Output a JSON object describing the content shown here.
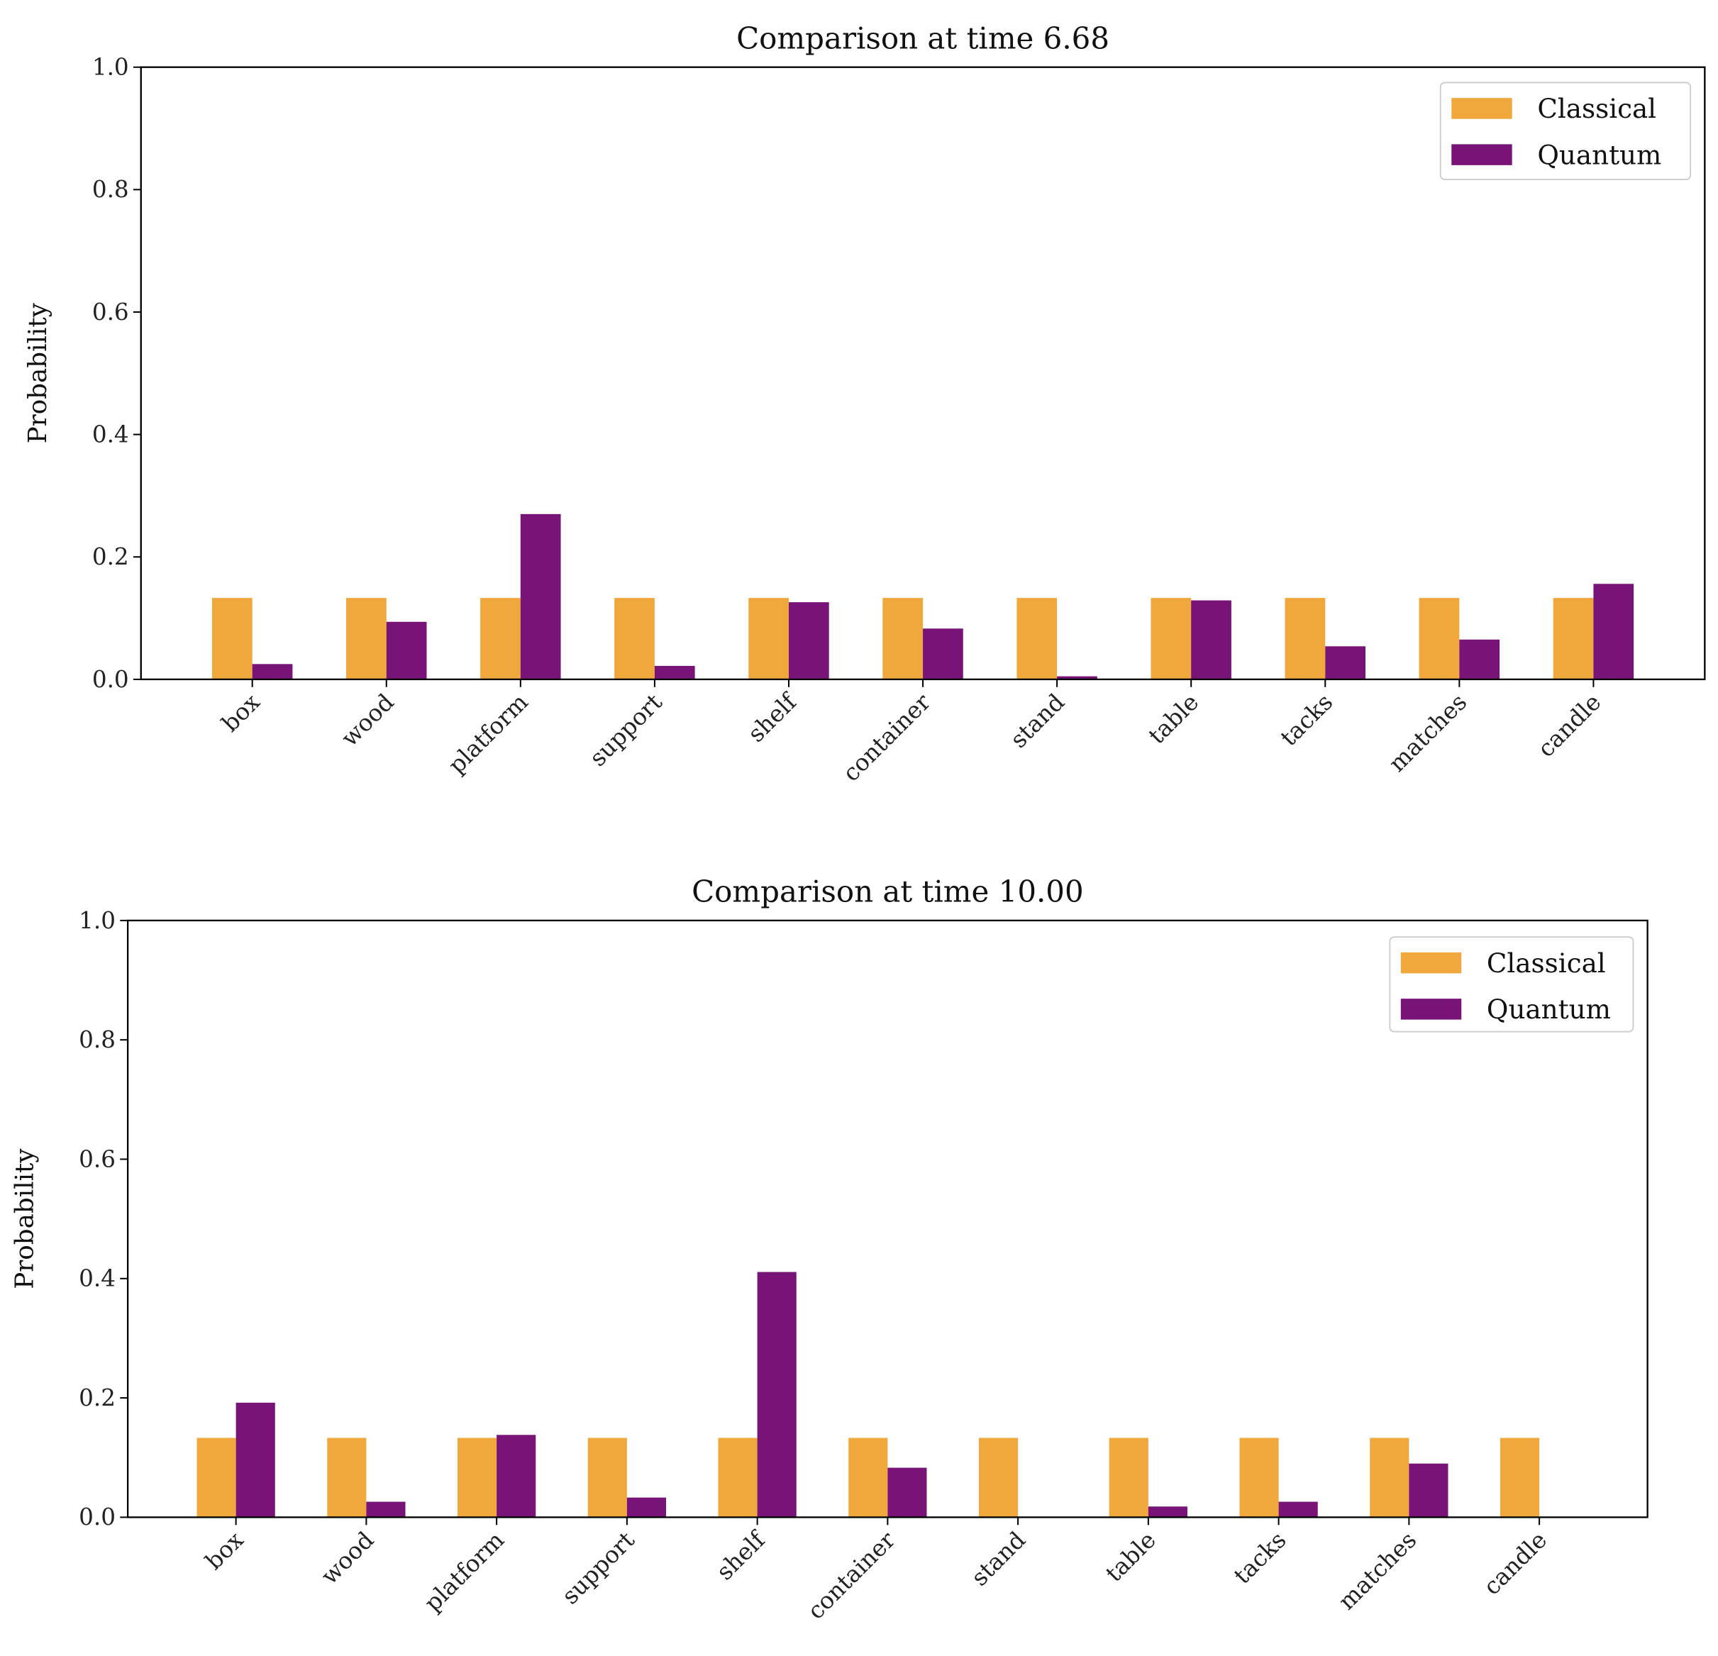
{
  "chart_data": [
    {
      "type": "bar",
      "title": "Comparison at time 6.68",
      "xlabel": "",
      "ylabel": "Probability",
      "ylim": [
        0,
        1.0
      ],
      "yticks": [
        "0.0",
        "0.2",
        "0.4",
        "0.6",
        "0.8",
        "1.0"
      ],
      "legend_placement": "top-right",
      "categories": [
        "box",
        "wood",
        "platform",
        "support",
        "shelf",
        "container",
        "stand",
        "table",
        "tacks",
        "matches",
        "candle"
      ],
      "series": [
        {
          "name": "Classical",
          "color": "#f0a83c",
          "values": [
            0.133,
            0.133,
            0.133,
            0.133,
            0.133,
            0.133,
            0.133,
            0.133,
            0.133,
            0.133,
            0.133
          ]
        },
        {
          "name": "Quantum",
          "color": "#781478",
          "values": [
            0.025,
            0.094,
            0.27,
            0.022,
            0.126,
            0.083,
            0.005,
            0.129,
            0.054,
            0.065,
            0.156
          ]
        }
      ]
    },
    {
      "type": "bar",
      "title": "Comparison at time 10.00",
      "xlabel": "",
      "ylabel": "Probability",
      "ylim": [
        0,
        1.0
      ],
      "yticks": [
        "0.0",
        "0.2",
        "0.4",
        "0.6",
        "0.8",
        "1.0"
      ],
      "legend_placement": "top-right",
      "categories": [
        "box",
        "wood",
        "platform",
        "support",
        "shelf",
        "container",
        "stand",
        "table",
        "tacks",
        "matches",
        "candle"
      ],
      "series": [
        {
          "name": "Classical",
          "color": "#f0a83c",
          "values": [
            0.133,
            0.133,
            0.133,
            0.133,
            0.133,
            0.133,
            0.133,
            0.133,
            0.133,
            0.133,
            0.133
          ]
        },
        {
          "name": "Quantum",
          "color": "#781478",
          "values": [
            0.192,
            0.026,
            0.138,
            0.033,
            0.411,
            0.083,
            0.0,
            0.018,
            0.026,
            0.09,
            0.0
          ]
        }
      ]
    }
  ]
}
